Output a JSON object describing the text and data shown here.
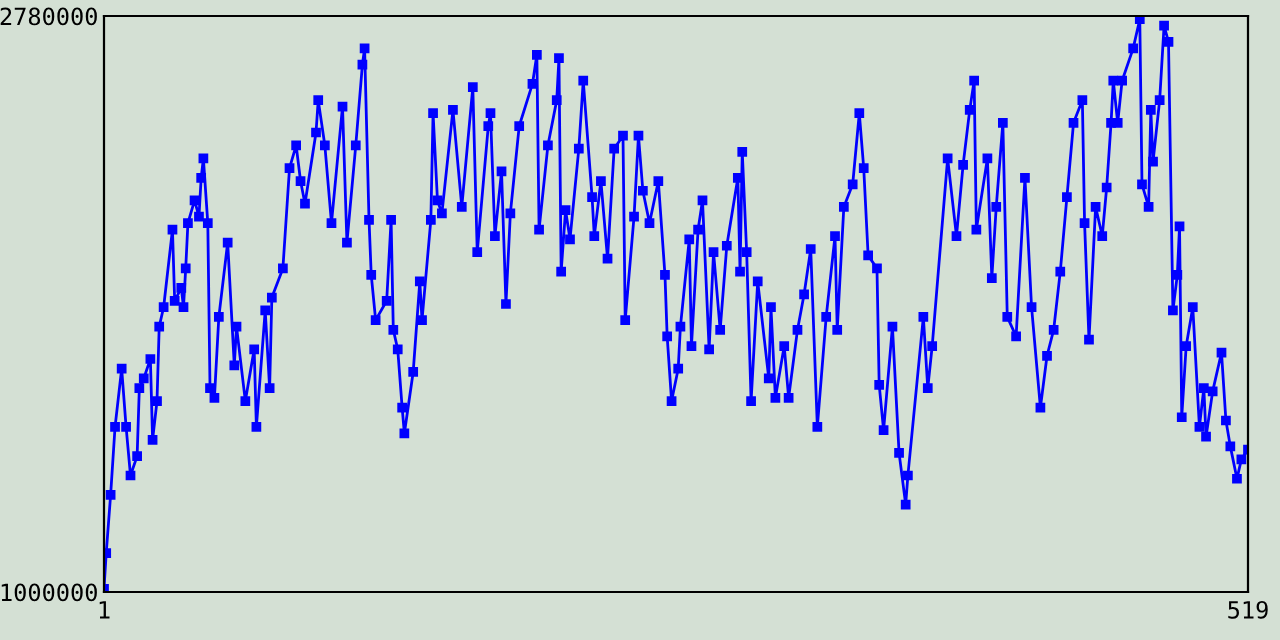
{
  "chart_data": {
    "type": "line",
    "marker": "square",
    "line_style": "solid",
    "grid": false,
    "legend": false,
    "xlim": [
      1,
      519
    ],
    "xticks": [
      1,
      519
    ],
    "ylim": [
      1000000,
      2780000
    ],
    "yticks": [
      1000000,
      2780000
    ],
    "series": [
      {
        "color": "#0000ff",
        "x": [
          1,
          2,
          4,
          6,
          9,
          11,
          13,
          16,
          17,
          19,
          22,
          23,
          25,
          26,
          28,
          32,
          33,
          36,
          37,
          38,
          39,
          42,
          44,
          45,
          46,
          48,
          49,
          51,
          53,
          57,
          60,
          61,
          65,
          69,
          70,
          74,
          76,
          77,
          82,
          85,
          88,
          90,
          92,
          97,
          98,
          101,
          104,
          109,
          111,
          115,
          118,
          119,
          121,
          122,
          124,
          129,
          131,
          132,
          134,
          136,
          137,
          141,
          144,
          145,
          149,
          150,
          152,
          154,
          159,
          163,
          168,
          170,
          175,
          176,
          178,
          181,
          183,
          185,
          189,
          195,
          197,
          198,
          202,
          206,
          207,
          208,
          210,
          212,
          216,
          218,
          222,
          223,
          226,
          229,
          232,
          236,
          237,
          241,
          243,
          245,
          248,
          252,
          255,
          256,
          258,
          261,
          262,
          266,
          267,
          270,
          272,
          275,
          277,
          280,
          283,
          288,
          289,
          290,
          292,
          294,
          297,
          302,
          303,
          305,
          309,
          311,
          315,
          318,
          321,
          324,
          328,
          332,
          333,
          336,
          340,
          343,
          345,
          347,
          351,
          352,
          354,
          358,
          361,
          364,
          365,
          372,
          374,
          376,
          383,
          387,
          390,
          393,
          395,
          396,
          401,
          403,
          405,
          408,
          410,
          414,
          418,
          421,
          425,
          428,
          431,
          434,
          437,
          440,
          444,
          445,
          447,
          450,
          453,
          455,
          457,
          458,
          460,
          462,
          467,
          470,
          471,
          474,
          475,
          476,
          479,
          481,
          483,
          485,
          487,
          488,
          489,
          491,
          494,
          497,
          499,
          500,
          503,
          507,
          509,
          511,
          514,
          516,
          519
        ],
        "values": [
          1010000,
          1120000,
          1300000,
          1510000,
          1690000,
          1510000,
          1360000,
          1420000,
          1630000,
          1660000,
          1720000,
          1470000,
          1590000,
          1820000,
          1880000,
          2120000,
          1900000,
          1940000,
          1880000,
          2000000,
          2140000,
          2210000,
          2160000,
          2280000,
          2340000,
          2140000,
          1630000,
          1600000,
          1850000,
          2080000,
          1700000,
          1820000,
          1590000,
          1750000,
          1510000,
          1870000,
          1630000,
          1910000,
          2000000,
          2310000,
          2380000,
          2270000,
          2200000,
          2420000,
          2520000,
          2380000,
          2140000,
          2500000,
          2080000,
          2380000,
          2630000,
          2680000,
          2150000,
          1980000,
          1840000,
          1900000,
          2150000,
          1810000,
          1750000,
          1570000,
          1490000,
          1680000,
          1960000,
          1840000,
          2150000,
          2480000,
          2210000,
          2170000,
          2490000,
          2190000,
          2560000,
          2050000,
          2440000,
          2480000,
          2100000,
          2300000,
          1890000,
          2170000,
          2440000,
          2570000,
          2660000,
          2120000,
          2380000,
          2520000,
          2650000,
          1990000,
          2180000,
          2090000,
          2370000,
          2580000,
          2220000,
          2100000,
          2270000,
          2030000,
          2370000,
          2410000,
          1840000,
          2160000,
          2410000,
          2240000,
          2140000,
          2270000,
          1980000,
          1790000,
          1590000,
          1690000,
          1820000,
          2090000,
          1760000,
          2120000,
          2210000,
          1750000,
          2050000,
          1810000,
          2070000,
          2280000,
          1990000,
          2360000,
          2050000,
          1590000,
          1960000,
          1660000,
          1880000,
          1600000,
          1760000,
          1600000,
          1810000,
          1920000,
          2060000,
          1510000,
          1850000,
          2100000,
          1810000,
          2190000,
          2260000,
          2480000,
          2310000,
          2040000,
          2000000,
          1640000,
          1500000,
          1820000,
          1430000,
          1270000,
          1360000,
          1850000,
          1630000,
          1760000,
          2340000,
          2100000,
          2320000,
          2490000,
          2580000,
          2120000,
          2340000,
          1970000,
          2190000,
          2450000,
          1850000,
          1790000,
          2280000,
          1880000,
          1570000,
          1730000,
          1810000,
          1990000,
          2220000,
          2450000,
          2520000,
          2140000,
          1780000,
          2190000,
          2100000,
          2250000,
          2450000,
          2580000,
          2450000,
          2580000,
          2680000,
          2770000,
          2260000,
          2190000,
          2490000,
          2330000,
          2520000,
          2750000,
          2700000,
          1870000,
          1980000,
          2130000,
          1540000,
          1760000,
          1880000,
          1510000,
          1630000,
          1480000,
          1620000,
          1740000,
          1530000,
          1450000,
          1350000,
          1410000,
          1440000
        ]
      }
    ]
  }
}
